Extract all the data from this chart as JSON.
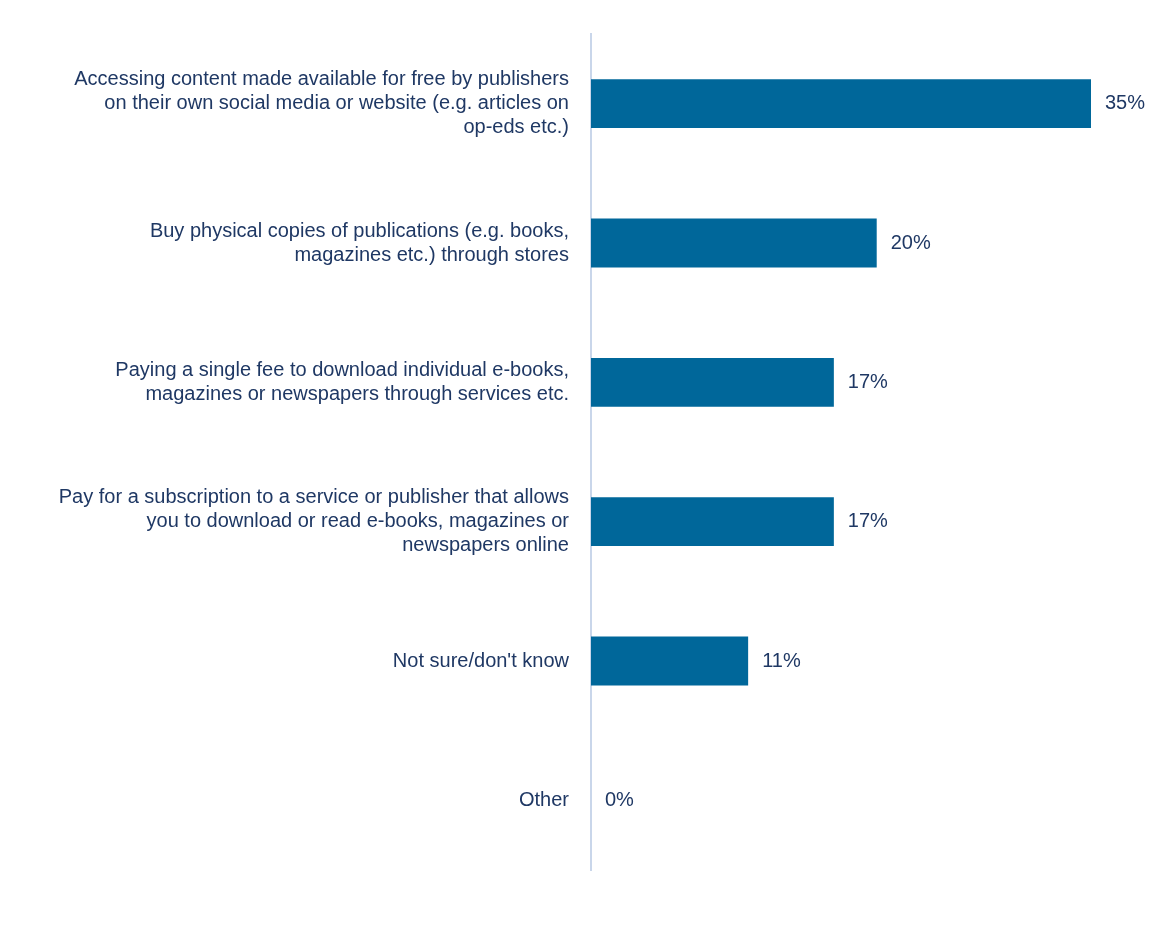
{
  "chart_data": {
    "type": "bar",
    "orientation": "horizontal",
    "categories": [
      "Accessing content made available for free by publishers on their own social media or website (e.g. articles on op-eds etc.)",
      "Buy physical copies of publications (e.g. books, magazines etc.) through stores",
      "Paying a single fee to download individual e-books, magazines or newspapers through services etc.",
      "Pay for a subscription to a service or publisher that allows you to download or read e-books, magazines or newspapers online",
      "Not sure/don't know",
      "Other"
    ],
    "values": [
      35,
      20,
      17,
      17,
      11,
      0
    ],
    "value_labels": [
      "35%",
      "20%",
      "17%",
      "17%",
      "11%",
      "0%"
    ],
    "color": "#00679a",
    "tick_labels": "y",
    "legend": false
  }
}
